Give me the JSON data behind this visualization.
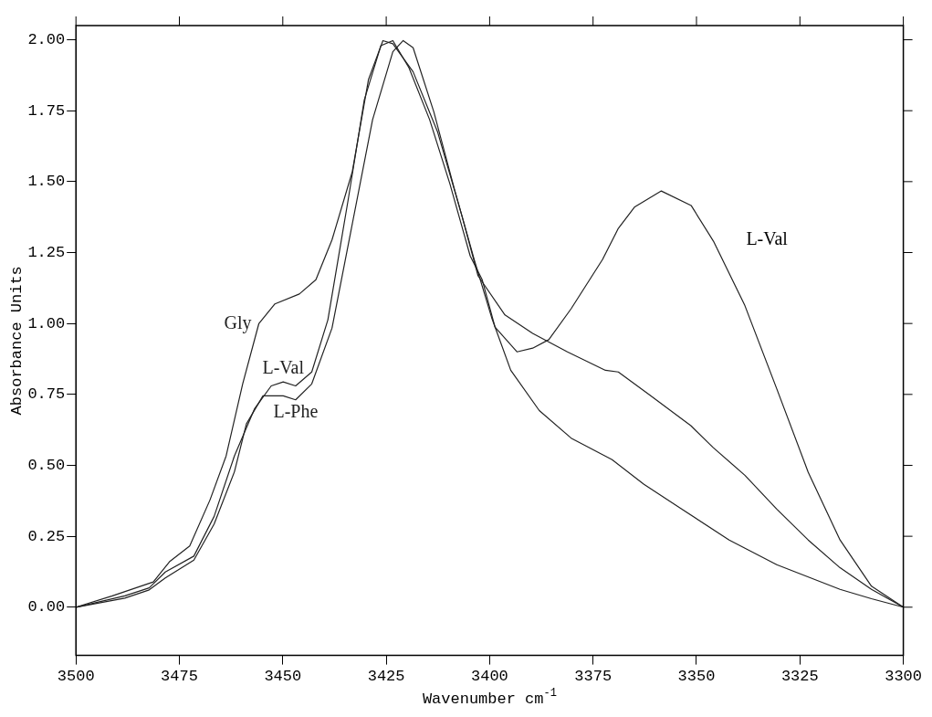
{
  "chart_data": {
    "type": "line",
    "xlabel": "Wavenumber cm$^{-1}$",
    "ylabel": "Absorbance Units",
    "xlim": [
      3500,
      3300
    ],
    "xticks": [
      3500,
      3475,
      3450,
      3425,
      3400,
      3375,
      3350,
      3325,
      3300
    ],
    "ylim": [
      -0.17,
      2.05
    ],
    "yticks": [
      {
        "value": 0,
        "label": "0.00"
      },
      {
        "value": 0.25,
        "label": "0.25"
      },
      {
        "value": 0.5,
        "label": "0.50"
      },
      {
        "value": 0.75,
        "label": "0.75"
      },
      {
        "value": 1,
        "label": "1.00"
      },
      {
        "value": 1.25,
        "label": "1.25"
      },
      {
        "value": 1.5,
        "label": "1.50"
      },
      {
        "value": 1.75,
        "label": "1.75"
      },
      {
        "value": 2,
        "label": "2.00"
      }
    ],
    "grid": false,
    "legend": false,
    "marker": "none",
    "line_style": "solid",
    "annotations": [
      "L-Val"
    ],
    "series": [
      {
        "name": "Gly",
        "color": "#222222",
        "x": [
          3500,
          3491.2,
          3481.3,
          3477.4,
          3472.5,
          3467.6,
          3463.7,
          3459.7,
          3455.8,
          3451.9,
          3446,
          3442,
          3438.1,
          3433.2,
          3429.3,
          3425.8,
          3423.4,
          3418.5,
          3412.6,
          3406.7,
          3402.8,
          3396.3,
          3389.6,
          3381.2,
          3372,
          3368.9,
          3361.3,
          3351.3,
          3346,
          3338.3,
          3330.6,
          3323,
          3315.3,
          3307.7,
          3300
        ],
        "values": [
          0,
          0.04,
          0.089,
          0.16,
          0.216,
          0.378,
          0.533,
          0.787,
          0.999,
          1.069,
          1.104,
          1.154,
          1.295,
          1.535,
          1.859,
          1.997,
          1.986,
          1.887,
          1.676,
          1.379,
          1.168,
          1.03,
          0.965,
          0.9,
          0.835,
          0.829,
          0.748,
          0.639,
          0.563,
          0.465,
          0.346,
          0.237,
          0.139,
          0.063,
          0
        ]
      },
      {
        "name": "L-Val",
        "color": "#222222",
        "x": [
          3500,
          3488.2,
          3482.3,
          3478.4,
          3471.5,
          3466.6,
          3461.7,
          3456.8,
          3452.8,
          3449.9,
          3446.9,
          3443,
          3439.1,
          3434.2,
          3430.3,
          3426.3,
          3423.4,
          3419.5,
          3414.5,
          3409.6,
          3404.7,
          3401.8,
          3398.7,
          3393.4,
          3389.6,
          3385.7,
          3380.3,
          3372.7,
          3368.9,
          3365,
          3358.5,
          3351.3,
          3345.9,
          3338.3,
          3330.6,
          3323,
          3315.3,
          3307.7,
          3300
        ],
        "values": [
          0,
          0.04,
          0.068,
          0.124,
          0.18,
          0.32,
          0.533,
          0.7,
          0.78,
          0.794,
          0.78,
          0.829,
          1.013,
          1.436,
          1.788,
          1.979,
          1.997,
          1.901,
          1.718,
          1.492,
          1.238,
          1.154,
          0.987,
          0.9,
          0.913,
          0.943,
          1.052,
          1.226,
          1.335,
          1.41,
          1.467,
          1.416,
          1.29,
          1.063,
          0.77,
          0.476,
          0.237,
          0.074,
          0
        ]
      },
      {
        "name": "L-Phe",
        "color": "#222222",
        "x": [
          3500,
          3488.2,
          3482.3,
          3478.4,
          3471.5,
          3466.6,
          3461.7,
          3458.8,
          3454.8,
          3449.9,
          3446.9,
          3443,
          3438.1,
          3433.2,
          3428.3,
          3423.4,
          3420.9,
          3418.5,
          3413.5,
          3408.6,
          3403.7,
          3399.5,
          3394.9,
          3388,
          3380.3,
          3370.4,
          3362.7,
          3353.6,
          3342.1,
          3330.6,
          3315.3,
          3307.7,
          3300
        ],
        "values": [
          0,
          0.032,
          0.061,
          0.103,
          0.166,
          0.293,
          0.477,
          0.646,
          0.745,
          0.745,
          0.731,
          0.787,
          0.984,
          1.351,
          1.718,
          1.958,
          1.997,
          1.972,
          1.746,
          1.478,
          1.224,
          1.02,
          0.835,
          0.693,
          0.596,
          0.52,
          0.433,
          0.346,
          0.237,
          0.15,
          0.063,
          0.03,
          0
        ]
      }
    ]
  }
}
